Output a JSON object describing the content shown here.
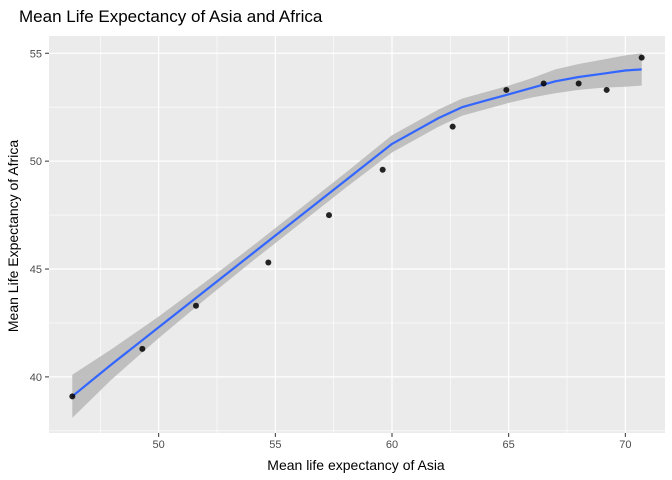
{
  "chart_data": {
    "type": "scatter",
    "title": "Mean Life Expectancy of Asia and Africa",
    "xlabel": "Mean life expectancy of Asia",
    "ylabel": "Mean Life Expectancy of Africa",
    "xlim": [
      45.3,
      71.7
    ],
    "ylim": [
      37.4,
      55.8
    ],
    "x_ticks": [
      50,
      55,
      60,
      65,
      70
    ],
    "y_ticks": [
      40,
      45,
      50,
      55
    ],
    "grid": true,
    "legend": "none",
    "colors": {
      "panel": "#ebebeb",
      "grid_major": "#ffffff",
      "point": "#000000",
      "smooth_line": "#3366ff",
      "confidence_band": "#bdbdbd"
    },
    "points": [
      {
        "x": 46.3,
        "y": 39.1
      },
      {
        "x": 49.3,
        "y": 41.3
      },
      {
        "x": 51.6,
        "y": 43.3
      },
      {
        "x": 54.7,
        "y": 45.3
      },
      {
        "x": 57.3,
        "y": 47.5
      },
      {
        "x": 59.6,
        "y": 49.6
      },
      {
        "x": 62.6,
        "y": 51.6
      },
      {
        "x": 64.9,
        "y": 53.3
      },
      {
        "x": 66.5,
        "y": 53.6
      },
      {
        "x": 68.0,
        "y": 53.6
      },
      {
        "x": 69.2,
        "y": 53.3
      },
      {
        "x": 70.7,
        "y": 54.8
      }
    ],
    "smooth": {
      "x": [
        46.3,
        48.0,
        50.0,
        52.0,
        54.0,
        56.0,
        58.0,
        60.0,
        62.0,
        63.0,
        64.0,
        65.0,
        66.0,
        67.0,
        68.0,
        69.0,
        70.0,
        70.7
      ],
      "y": [
        39.1,
        40.6,
        42.3,
        44.0,
        45.7,
        47.4,
        49.1,
        50.8,
        52.0,
        52.5,
        52.8,
        53.1,
        53.4,
        53.7,
        53.9,
        54.05,
        54.2,
        54.25
      ],
      "lower": [
        38.1,
        39.9,
        41.8,
        43.6,
        45.35,
        47.05,
        48.75,
        50.4,
        51.6,
        52.1,
        52.4,
        52.7,
        52.95,
        53.15,
        53.3,
        53.4,
        53.45,
        53.5
      ],
      "upper": [
        40.1,
        41.3,
        42.8,
        44.4,
        46.05,
        47.75,
        49.45,
        51.2,
        52.4,
        52.9,
        53.2,
        53.5,
        53.85,
        54.25,
        54.5,
        54.7,
        54.9,
        55.0
      ]
    }
  }
}
